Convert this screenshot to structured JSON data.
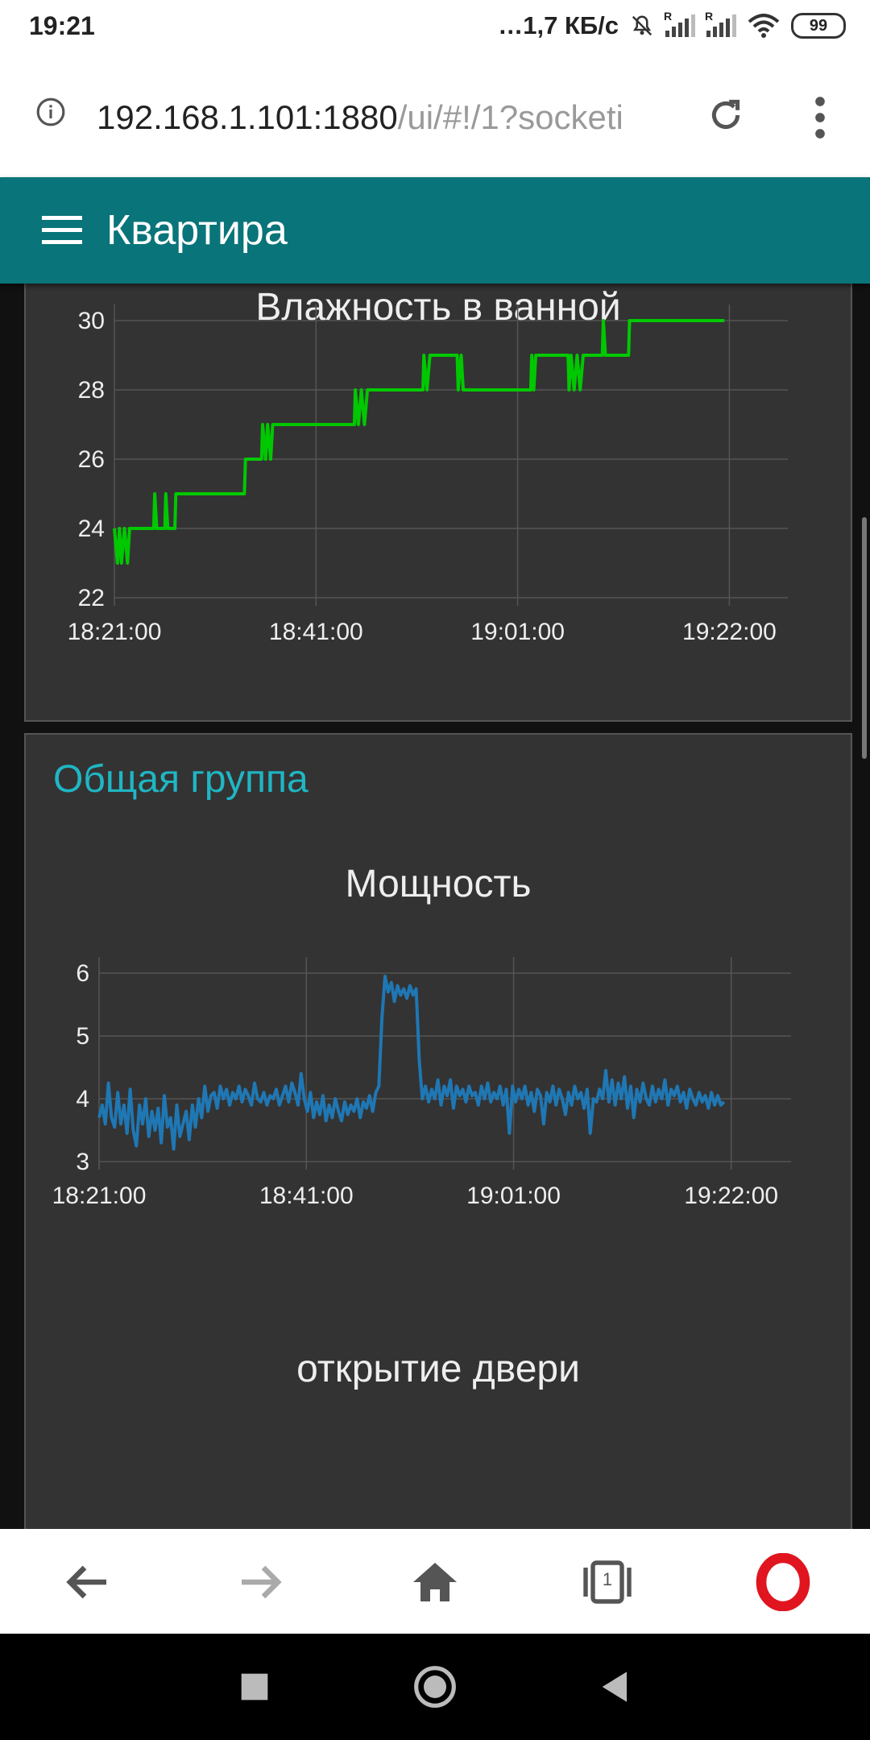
{
  "status_bar": {
    "time": "19:21",
    "net_speed": "…1,7 КБ/с",
    "sim1_label": "R",
    "sim2_label": "R",
    "battery": "99"
  },
  "browser": {
    "url_host": "192.168.1.101:1880",
    "url_path": "/ui/#!/1?socketi"
  },
  "app": {
    "title": "Квартира"
  },
  "group": {
    "title": "Общая группа"
  },
  "chart_data": [
    {
      "type": "line",
      "title": "Влажность в ванной",
      "color": "#00c800",
      "ylim": [
        22,
        30
      ],
      "y_ticks": [
        "22",
        "24",
        "26",
        "28",
        "30"
      ],
      "x_ticks": [
        "18:21:00",
        "18:41:00",
        "19:01:00",
        "19:22:00"
      ],
      "x_tick_minutes": [
        0,
        20,
        40,
        61
      ],
      "xlim_minutes": [
        0,
        66
      ],
      "grid": true,
      "series": [
        {
          "values": [
            [
              0,
              24
            ],
            [
              0.3,
              23
            ],
            [
              0.5,
              24
            ],
            [
              0.7,
              23
            ],
            [
              1.0,
              24
            ],
            [
              1.3,
              23
            ],
            [
              1.5,
              24
            ],
            [
              3.9,
              24
            ],
            [
              4.0,
              25
            ],
            [
              4.2,
              24
            ],
            [
              5.0,
              24
            ],
            [
              5.1,
              25
            ],
            [
              5.3,
              24
            ],
            [
              6.0,
              24
            ],
            [
              6.1,
              25
            ],
            [
              12.9,
              25
            ],
            [
              13.0,
              26
            ],
            [
              14.6,
              26
            ],
            [
              14.7,
              27
            ],
            [
              15.0,
              26
            ],
            [
              15.2,
              27
            ],
            [
              15.5,
              26
            ],
            [
              15.7,
              27
            ],
            [
              23.8,
              27
            ],
            [
              23.9,
              28
            ],
            [
              24.2,
              27
            ],
            [
              24.5,
              28
            ],
            [
              24.8,
              27
            ],
            [
              25.1,
              28
            ],
            [
              30.6,
              28
            ],
            [
              30.7,
              29
            ],
            [
              31.0,
              28
            ],
            [
              31.3,
              29
            ],
            [
              34.0,
              29
            ],
            [
              34.1,
              28
            ],
            [
              34.4,
              29
            ],
            [
              34.6,
              28
            ],
            [
              41.3,
              28
            ],
            [
              41.4,
              29
            ],
            [
              41.6,
              28
            ],
            [
              41.8,
              29
            ],
            [
              45.0,
              29
            ],
            [
              45.1,
              28
            ],
            [
              45.3,
              29
            ],
            [
              45.6,
              28
            ],
            [
              45.9,
              29
            ],
            [
              46.2,
              28
            ],
            [
              46.5,
              29
            ],
            [
              48.4,
              29
            ],
            [
              48.5,
              30
            ],
            [
              48.7,
              29
            ],
            [
              51.0,
              29
            ],
            [
              51.1,
              30
            ],
            [
              60.5,
              30
            ]
          ]
        }
      ]
    },
    {
      "type": "line",
      "title": "Мощность",
      "color": "#1f77b4",
      "ylim": [
        3,
        6
      ],
      "y_ticks": [
        "3",
        "4",
        "5",
        "6"
      ],
      "x_ticks": [
        "18:21:00",
        "18:41:00",
        "19:01:00",
        "19:22:00"
      ],
      "x_tick_minutes": [
        0,
        20,
        40,
        61
      ],
      "xlim_minutes": [
        0,
        66
      ],
      "grid": true,
      "series": [
        {
          "values": [
            [
              0,
              3.7
            ],
            [
              0.3,
              3.9
            ],
            [
              0.6,
              3.6
            ],
            [
              0.9,
              4.25
            ],
            [
              1.2,
              3.7
            ],
            [
              1.5,
              3.55
            ],
            [
              1.8,
              4.1
            ],
            [
              2.1,
              3.6
            ],
            [
              2.4,
              3.9
            ],
            [
              2.7,
              3.45
            ],
            [
              3.0,
              4.15
            ],
            [
              3.3,
              3.5
            ],
            [
              3.6,
              3.25
            ],
            [
              3.9,
              3.9
            ],
            [
              4.2,
              3.6
            ],
            [
              4.5,
              4.0
            ],
            [
              4.8,
              3.4
            ],
            [
              5.1,
              3.8
            ],
            [
              5.4,
              3.5
            ],
            [
              5.7,
              3.85
            ],
            [
              6.0,
              3.3
            ],
            [
              6.3,
              4.05
            ],
            [
              6.6,
              3.55
            ],
            [
              6.9,
              3.7
            ],
            [
              7.2,
              3.2
            ],
            [
              7.5,
              3.9
            ],
            [
              7.8,
              3.4
            ],
            [
              8.1,
              3.6
            ],
            [
              8.4,
              3.8
            ],
            [
              8.7,
              3.35
            ],
            [
              9.0,
              3.9
            ],
            [
              9.3,
              3.55
            ],
            [
              9.6,
              4.0
            ],
            [
              9.9,
              3.7
            ],
            [
              10.2,
              4.2
            ],
            [
              10.5,
              3.8
            ],
            [
              10.8,
              4.05
            ],
            [
              11.1,
              4.1
            ],
            [
              11.4,
              3.85
            ],
            [
              11.7,
              4.2
            ],
            [
              12.0,
              4.0
            ],
            [
              12.3,
              4.15
            ],
            [
              12.6,
              3.9
            ],
            [
              12.9,
              4.1
            ],
            [
              13.2,
              4.0
            ],
            [
              13.5,
              4.2
            ],
            [
              13.8,
              3.95
            ],
            [
              14.1,
              4.15
            ],
            [
              14.4,
              4.05
            ],
            [
              14.7,
              3.9
            ],
            [
              15.0,
              4.25
            ],
            [
              15.3,
              4.0
            ],
            [
              15.6,
              3.95
            ],
            [
              15.9,
              4.1
            ],
            [
              16.2,
              3.9
            ],
            [
              16.5,
              4.05
            ],
            [
              16.8,
              4.0
            ],
            [
              17.1,
              4.15
            ],
            [
              17.4,
              3.9
            ],
            [
              17.7,
              4.05
            ],
            [
              18.0,
              4.2
            ],
            [
              18.3,
              3.95
            ],
            [
              18.6,
              4.25
            ],
            [
              18.9,
              4.1
            ],
            [
              19.2,
              3.9
            ],
            [
              19.5,
              4.4
            ],
            [
              19.8,
              4.0
            ],
            [
              20.1,
              3.8
            ],
            [
              20.4,
              4.1
            ],
            [
              20.7,
              3.7
            ],
            [
              21.0,
              3.95
            ],
            [
              21.3,
              3.75
            ],
            [
              21.6,
              4.05
            ],
            [
              21.9,
              3.65
            ],
            [
              22.2,
              3.9
            ],
            [
              22.5,
              3.7
            ],
            [
              22.8,
              4.0
            ],
            [
              23.1,
              3.8
            ],
            [
              23.4,
              3.65
            ],
            [
              23.7,
              3.95
            ],
            [
              24.0,
              3.75
            ],
            [
              24.3,
              3.9
            ],
            [
              24.6,
              3.8
            ],
            [
              24.9,
              4.0
            ],
            [
              25.2,
              3.7
            ],
            [
              25.5,
              3.95
            ],
            [
              25.8,
              3.85
            ],
            [
              26.1,
              4.05
            ],
            [
              26.4,
              3.8
            ],
            [
              26.7,
              4.1
            ],
            [
              27.0,
              4.2
            ],
            [
              27.3,
              5.3
            ],
            [
              27.6,
              5.95
            ],
            [
              27.9,
              5.7
            ],
            [
              28.2,
              5.85
            ],
            [
              28.5,
              5.55
            ],
            [
              28.8,
              5.8
            ],
            [
              29.1,
              5.65
            ],
            [
              29.4,
              5.75
            ],
            [
              29.7,
              5.6
            ],
            [
              30.0,
              5.8
            ],
            [
              30.3,
              5.65
            ],
            [
              30.6,
              5.75
            ],
            [
              30.9,
              4.6
            ],
            [
              31.2,
              4.0
            ],
            [
              31.5,
              4.2
            ],
            [
              31.8,
              3.95
            ],
            [
              32.1,
              4.15
            ],
            [
              32.4,
              4.0
            ],
            [
              32.7,
              4.3
            ],
            [
              33.0,
              3.9
            ],
            [
              33.3,
              4.2
            ],
            [
              33.6,
              4.05
            ],
            [
              33.9,
              4.3
            ],
            [
              34.2,
              3.85
            ],
            [
              34.5,
              4.2
            ],
            [
              34.8,
              4.05
            ],
            [
              35.1,
              4.15
            ],
            [
              35.4,
              3.95
            ],
            [
              35.7,
              4.2
            ],
            [
              36.0,
              4.05
            ],
            [
              36.3,
              4.1
            ],
            [
              36.6,
              3.9
            ],
            [
              36.9,
              4.2
            ],
            [
              37.2,
              4.0
            ],
            [
              37.5,
              4.25
            ],
            [
              37.8,
              3.95
            ],
            [
              38.1,
              4.1
            ],
            [
              38.4,
              4.0
            ],
            [
              38.7,
              4.2
            ],
            [
              39.0,
              3.9
            ],
            [
              39.3,
              4.15
            ],
            [
              39.6,
              3.45
            ],
            [
              39.9,
              4.2
            ],
            [
              40.2,
              3.95
            ],
            [
              40.5,
              4.15
            ],
            [
              40.8,
              4.0
            ],
            [
              41.1,
              4.2
            ],
            [
              41.4,
              3.9
            ],
            [
              41.7,
              4.1
            ],
            [
              42.0,
              3.8
            ],
            [
              42.3,
              4.15
            ],
            [
              42.6,
              4.05
            ],
            [
              42.9,
              3.6
            ],
            [
              43.2,
              4.1
            ],
            [
              43.5,
              3.95
            ],
            [
              43.8,
              4.2
            ],
            [
              44.1,
              3.9
            ],
            [
              44.4,
              4.15
            ],
            [
              44.7,
              4.0
            ],
            [
              45.0,
              3.75
            ],
            [
              45.3,
              4.1
            ],
            [
              45.6,
              3.9
            ],
            [
              45.9,
              4.2
            ],
            [
              46.2,
              4.0
            ],
            [
              46.5,
              4.1
            ],
            [
              46.8,
              3.85
            ],
            [
              47.1,
              4.15
            ],
            [
              47.4,
              3.45
            ],
            [
              47.7,
              4.0
            ],
            [
              48.0,
              3.95
            ],
            [
              48.3,
              4.15
            ],
            [
              48.6,
              4.0
            ],
            [
              48.9,
              4.45
            ],
            [
              49.2,
              3.95
            ],
            [
              49.5,
              4.3
            ],
            [
              49.8,
              3.9
            ],
            [
              50.1,
              4.25
            ],
            [
              50.4,
              4.0
            ],
            [
              50.7,
              4.35
            ],
            [
              51.0,
              3.85
            ],
            [
              51.3,
              4.2
            ],
            [
              51.6,
              3.7
            ],
            [
              51.9,
              4.15
            ],
            [
              52.2,
              3.95
            ],
            [
              52.5,
              4.25
            ],
            [
              52.8,
              4.0
            ],
            [
              53.1,
              3.9
            ],
            [
              53.4,
              4.2
            ],
            [
              53.7,
              3.95
            ],
            [
              54.0,
              4.15
            ],
            [
              54.3,
              4.0
            ],
            [
              54.6,
              4.3
            ],
            [
              54.9,
              3.9
            ],
            [
              55.2,
              4.15
            ],
            [
              55.5,
              4.05
            ],
            [
              55.8,
              4.2
            ],
            [
              56.1,
              3.95
            ],
            [
              56.4,
              4.1
            ],
            [
              56.7,
              3.85
            ],
            [
              57.0,
              4.15
            ],
            [
              57.3,
              4.0
            ],
            [
              57.6,
              3.9
            ],
            [
              57.9,
              4.1
            ],
            [
              58.2,
              3.95
            ],
            [
              58.5,
              4.05
            ],
            [
              58.8,
              3.85
            ],
            [
              59.1,
              4.1
            ],
            [
              59.4,
              3.9
            ],
            [
              59.7,
              4.05
            ],
            [
              60.0,
              3.9
            ],
            [
              60.3,
              3.95
            ]
          ]
        }
      ]
    }
  ],
  "door": {
    "title": "открытие двери"
  },
  "nav": {
    "tabs_count": "1"
  }
}
